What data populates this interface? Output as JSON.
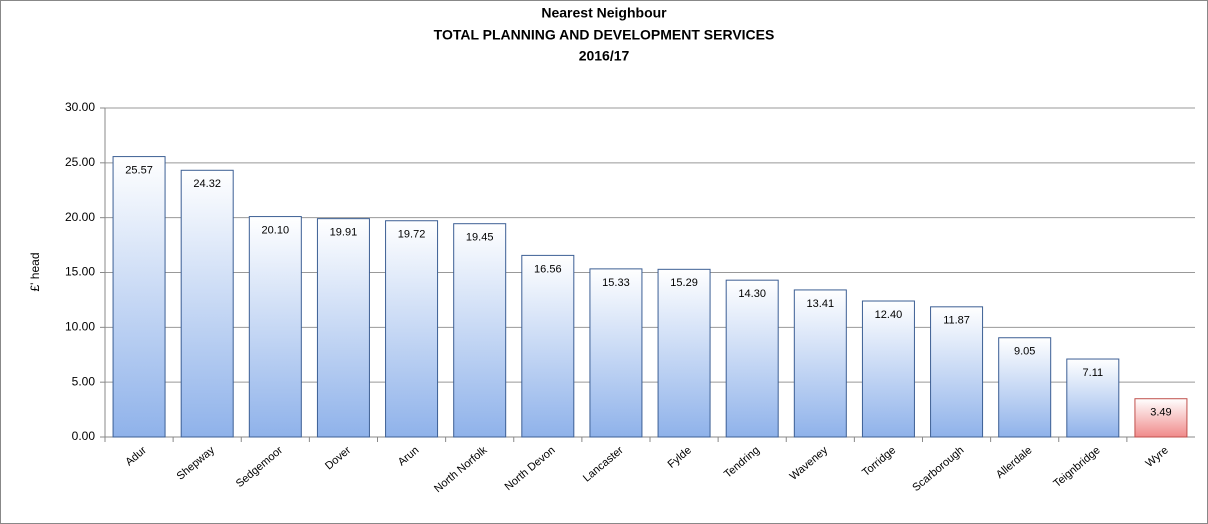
{
  "chart_data": {
    "type": "bar",
    "title": [
      "Nearest Neighbour",
      "TOTAL PLANNING AND DEVELOPMENT SERVICES",
      "2016/17"
    ],
    "y_label": "£' head",
    "categories": [
      "Adur",
      "Shepway",
      "Sedgemoor",
      "Dover",
      "Arun",
      "North Norfolk",
      "North Devon",
      "Lancaster",
      "Fylde",
      "Tendring",
      "Waveney",
      "Torridge",
      "Scarborough",
      "Allerdale",
      "Teignbridge",
      "Wyre"
    ],
    "values": [
      25.57,
      24.32,
      20.1,
      19.91,
      19.72,
      19.45,
      16.56,
      15.33,
      15.29,
      14.3,
      13.41,
      12.4,
      11.87,
      9.05,
      7.11,
      3.49
    ],
    "value_labels": [
      "25.57",
      "24.32",
      "20.10",
      "19.91",
      "19.72",
      "19.45",
      "16.56",
      "15.33",
      "15.29",
      "14.30",
      "13.41",
      "12.40",
      "11.87",
      "9.05",
      "7.11",
      "3.49"
    ],
    "colors": [
      "#8fb2ea",
      "#8fb2ea",
      "#8fb2ea",
      "#8fb2ea",
      "#8fb2ea",
      "#8fb2ea",
      "#8fb2ea",
      "#8fb2ea",
      "#8fb2ea",
      "#8fb2ea",
      "#8fb2ea",
      "#8fb2ea",
      "#8fb2ea",
      "#8fb2ea",
      "#8fb2ea",
      "#f08a8a"
    ],
    "ylim": [
      0,
      30
    ],
    "yticks": [
      {
        "value": 0,
        "label": "0.00"
      },
      {
        "value": 5,
        "label": "5.00"
      },
      {
        "value": 10,
        "label": "10.00"
      },
      {
        "value": 15,
        "label": "15.00"
      },
      {
        "value": 20,
        "label": "20.00"
      },
      {
        "value": 25,
        "label": "25.00"
      },
      {
        "value": 30,
        "label": "30.00"
      }
    ],
    "grid": true
  }
}
